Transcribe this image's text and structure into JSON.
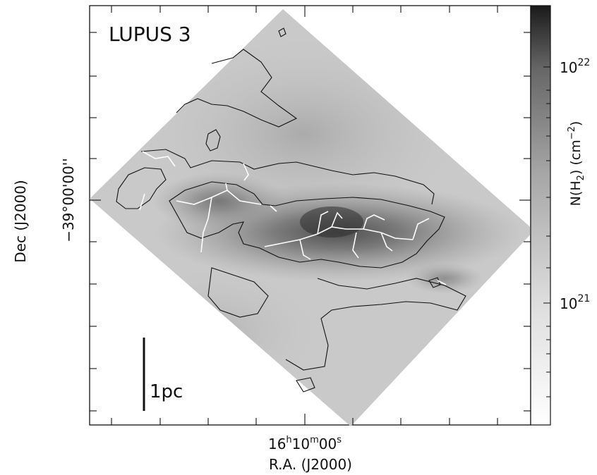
{
  "chart_data": {
    "type": "heatmap",
    "title": "LUPUS 3",
    "xlabel": "R.A. (J2000)",
    "ylabel": "Dec (J2000)",
    "x_tick_labels": [
      {
        "main": "16",
        "sup1": "h",
        "mid": "10",
        "sup2": "m",
        "tail": "00",
        "sup3": "s"
      }
    ],
    "y_tick_labels": [
      "−39°00'00''"
    ],
    "colorbar": {
      "label": "N(H2) (cm-2)",
      "label_parts": {
        "a": "N(H",
        "sub": "2",
        "b": ") (cm",
        "sup": "−2",
        "c": ")"
      },
      "scale": "log",
      "ticks": [
        {
          "base": "10",
          "exp": "22",
          "value": 1e+22
        },
        {
          "base": "10",
          "exp": "21",
          "value": 1e+21
        }
      ],
      "colormap": "greyscale (white = low, black = high)"
    },
    "overlays": {
      "contour_color": "#111111",
      "filament_color": "#ffffff",
      "filaments": "white skeleton lines tracing dense filaments"
    },
    "scale_bar": {
      "label": "1pc"
    }
  }
}
